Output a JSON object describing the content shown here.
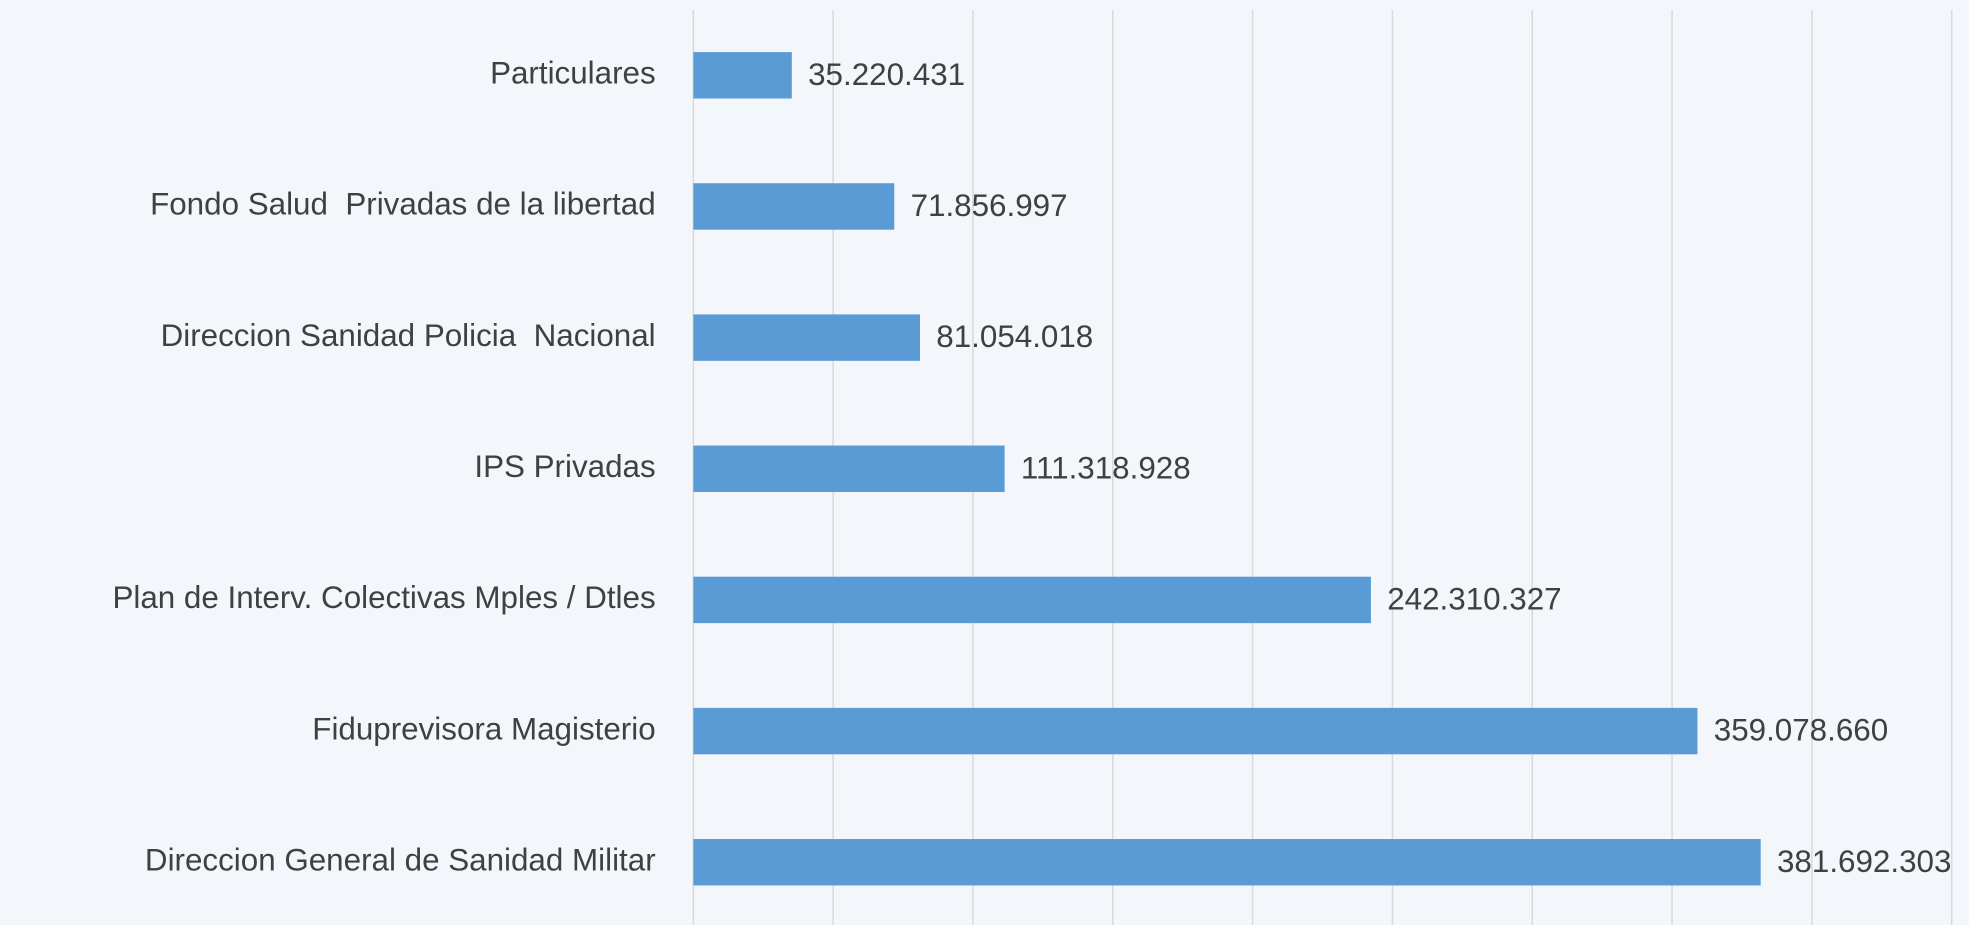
{
  "chart_data": {
    "type": "hbar",
    "categories": [
      "Particulares",
      "Fondo Salud  Privadas de la libertad",
      "Direccion Sanidad Policia  Nacional",
      "IPS Privadas",
      "Plan de Interv. Colectivas Mples / Dtles",
      "Fiduprevisora Magisterio",
      "Direccion General de Sanidad Militar"
    ],
    "values": [
      35220431,
      71856997,
      81054018,
      111318928,
      242310327,
      359078660,
      381692303
    ],
    "value_labels": [
      "35.220.431",
      "71.856.997",
      "81.054.018",
      "111.318.928",
      "242.310.327",
      "359.078.660",
      "381.692.303"
    ],
    "color": "#5b9bd5",
    "xlim": [
      0,
      456000000
    ],
    "xticks": [
      0,
      50000000,
      100000000,
      150000000,
      200000000,
      250000000,
      300000000,
      350000000,
      400000000,
      450000000
    ],
    "grid": true
  }
}
